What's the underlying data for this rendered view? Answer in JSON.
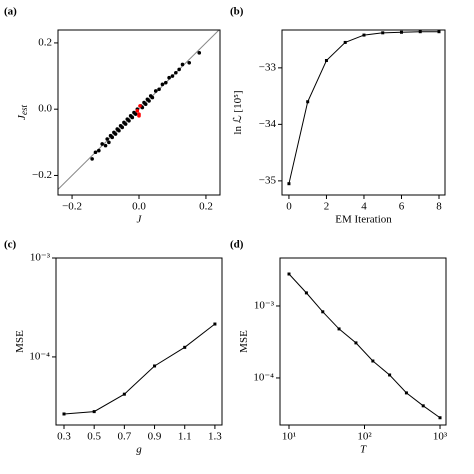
{
  "chart_data": [
    {
      "type": "scatter",
      "panel_label": "(a)",
      "xlabel": "J",
      "ylabel": "J",
      "ylabel_sub": "est",
      "xlim": [
        -0.242,
        0.242
      ],
      "ylim": [
        -0.259,
        0.239
      ],
      "xticks": [
        {
          "value": -0.2,
          "label": "−0.2"
        },
        {
          "value": 0,
          "label": "0.0"
        },
        {
          "value": 0.2,
          "label": "0.2"
        }
      ],
      "yticks": [
        {
          "value": -0.2,
          "label": "−0.2"
        },
        {
          "value": 0,
          "label": "0.0"
        },
        {
          "value": 0.2,
          "label": "0.2"
        }
      ],
      "diagonal": true,
      "series": [
        {
          "color": "#000000",
          "x": [
            -0.14,
            -0.13,
            -0.12,
            -0.11,
            -0.1,
            -0.095,
            -0.09,
            -0.085,
            -0.08,
            -0.075,
            -0.07,
            -0.065,
            -0.06,
            -0.055,
            -0.05,
            -0.045,
            -0.04,
            -0.035,
            -0.03,
            -0.025,
            -0.02,
            -0.015,
            -0.01,
            -0.005,
            0.005,
            0.01,
            0.015,
            0.02,
            0.025,
            0.03,
            0.035,
            0.04,
            0.05,
            0.06,
            0.07,
            0.08,
            0.09,
            0.1,
            0.11,
            0.12,
            0.13,
            0.15,
            0.18
          ],
          "values": [
            -0.15,
            -0.13,
            -0.125,
            -0.105,
            -0.11,
            -0.09,
            -0.1,
            -0.08,
            -0.085,
            -0.07,
            -0.075,
            -0.06,
            -0.065,
            -0.05,
            -0.055,
            -0.04,
            -0.045,
            -0.03,
            -0.035,
            -0.02,
            -0.025,
            -0.01,
            -0.015,
            0.0,
            0.01,
            0.005,
            0.02,
            0.015,
            0.03,
            0.025,
            0.04,
            0.035,
            0.055,
            0.06,
            0.075,
            0.08,
            0.095,
            0.1,
            0.11,
            0.12,
            0.135,
            0.14,
            0.17
          ]
        },
        {
          "color": "#ff0000",
          "x": [
            0.0,
            -0.005,
            0.003,
            0.0
          ],
          "values": [
            -0.02,
            -0.005,
            0.01,
            -0.015
          ]
        }
      ]
    },
    {
      "type": "line",
      "panel_label": "(b)",
      "xlabel": "EM Iteration",
      "ylabel": "ln ℒ [10⁵]",
      "xlim": [
        -0.37,
        8.32
      ],
      "ylim": [
        -35.25,
        -32.33
      ],
      "xticks": [
        0,
        2,
        4,
        6,
        8
      ],
      "yticks": [
        {
          "value": -35,
          "label": "−35"
        },
        {
          "value": -34,
          "label": "−34"
        },
        {
          "value": -33,
          "label": "−33"
        }
      ],
      "x": [
        0,
        1,
        2,
        3,
        4,
        5,
        6,
        7,
        8
      ],
      "series": [
        {
          "color": "#000000",
          "values": [
            -35.05,
            -33.6,
            -32.87,
            -32.55,
            -32.42,
            -32.38,
            -32.37,
            -32.36,
            -32.36
          ]
        }
      ]
    },
    {
      "type": "line",
      "panel_label": "(c)",
      "xlabel": "g",
      "ylabel": "MSE",
      "yscale": "log",
      "xlim": [
        0.247,
        1.347
      ],
      "ylim": [
        2.05e-05,
        0.001
      ],
      "xticks": [
        0.3,
        0.5,
        0.7,
        0.9,
        1.1,
        1.3
      ],
      "yticks": [
        {
          "value": 0.0001,
          "label": "10⁻⁴"
        },
        {
          "value": 0.001,
          "label": "10⁻³"
        }
      ],
      "x": [
        0.3,
        0.5,
        0.7,
        0.9,
        1.1,
        1.3
      ],
      "series": [
        {
          "color": "#000000",
          "values": [
            2.65e-05,
            2.8e-05,
            4.2e-05,
            8.1e-05,
            0.000125,
            0.000215
          ]
        }
      ]
    },
    {
      "type": "line",
      "panel_label": "(d)",
      "xlabel": "T",
      "ylabel": "MSE",
      "xscale": "log",
      "yscale": "log",
      "xlim": [
        7.6,
        1200
      ],
      "ylim": [
        2.22e-05,
        0.00464
      ],
      "xticks": [
        {
          "value": 10,
          "label": "10¹"
        },
        {
          "value": 100,
          "label": "10²"
        },
        {
          "value": 1000,
          "label": "10³"
        }
      ],
      "yticks": [
        {
          "value": 0.0001,
          "label": "10⁻⁴"
        },
        {
          "value": 0.001,
          "label": "10⁻³"
        }
      ],
      "x": [
        10,
        17,
        28,
        46,
        77,
        129,
        215,
        359,
        599,
        1000
      ],
      "series": [
        {
          "color": "#000000",
          "values": [
            0.00278,
            0.00152,
            0.00083,
            0.00048,
            0.000307,
            0.000172,
            0.00011,
            6.2e-05,
            4.1e-05,
            2.8e-05
          ]
        }
      ]
    }
  ]
}
